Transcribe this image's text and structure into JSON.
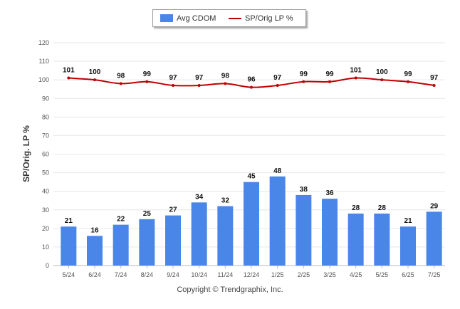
{
  "legend": {
    "bar_label": "Avg CDOM",
    "line_label": "SP/Orig LP %"
  },
  "copyright": "Copyright © Trendgraphix, Inc.",
  "colors": {
    "bar": "#4a86e8",
    "line": "#c00000",
    "grid": "#e6e6e6"
  },
  "chart_data": {
    "type": "bar",
    "title": "",
    "xlabel": "",
    "ylabel": "SP/Orig. LP %",
    "ylim": [
      0,
      120
    ],
    "yticks": [
      0,
      10,
      20,
      30,
      40,
      50,
      60,
      70,
      80,
      90,
      100,
      110,
      120
    ],
    "grid": true,
    "legend_position": "top-center",
    "categories": [
      "5/24",
      "6/24",
      "7/24",
      "8/24",
      "9/24",
      "10/24",
      "11/24",
      "12/24",
      "1/25",
      "2/25",
      "3/25",
      "4/25",
      "5/25",
      "6/25",
      "7/25"
    ],
    "series": [
      {
        "name": "Avg CDOM",
        "type": "bar",
        "values": [
          21,
          16,
          22,
          25,
          27,
          34,
          32,
          45,
          48,
          38,
          36,
          28,
          28,
          21,
          29
        ]
      },
      {
        "name": "SP/Orig LP %",
        "type": "line",
        "values": [
          101,
          100,
          98,
          99,
          97,
          97,
          98,
          96,
          97,
          99,
          99,
          101,
          100,
          99,
          97
        ]
      }
    ]
  }
}
